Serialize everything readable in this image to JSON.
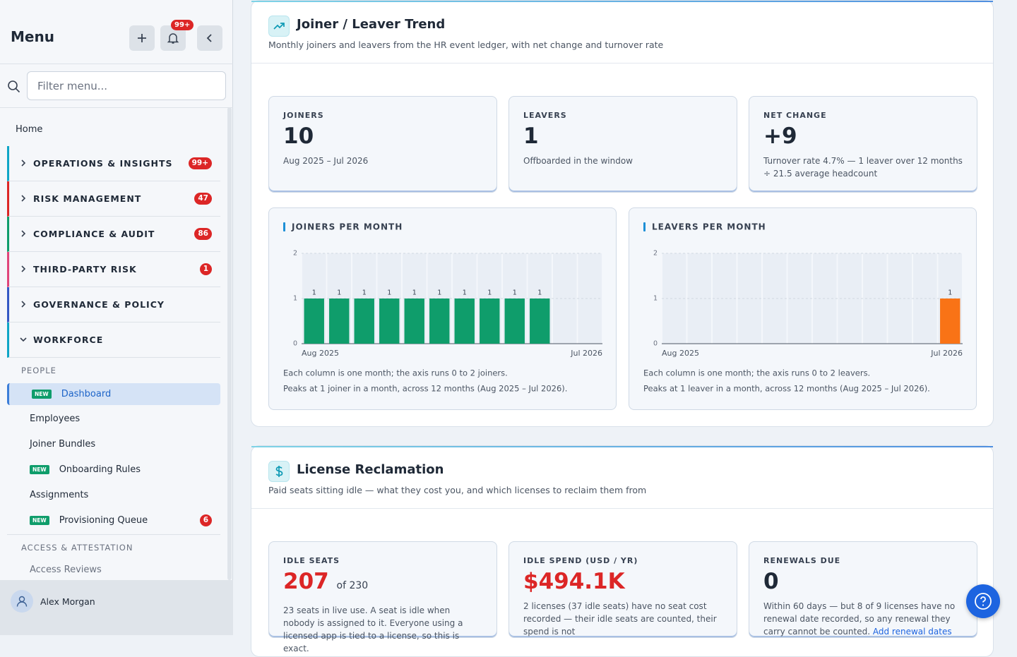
{
  "sidebar": {
    "title": "Menu",
    "notifications": "99+",
    "filter_placeholder": "Filter menu...",
    "home": "Home",
    "groups": [
      {
        "label": "OPERATIONS & INSIGHTS",
        "badge": "99+",
        "color": "#0ea5c6"
      },
      {
        "label": "RISK MANAGEMENT",
        "badge": "47",
        "color": "#dc2626"
      },
      {
        "label": "COMPLIANCE & AUDIT",
        "badge": "86",
        "color": "#0f9d6b"
      },
      {
        "label": "THIRD-PARTY RISK",
        "badge": "1",
        "color": "#e0457b"
      },
      {
        "label": "GOVERNANCE & POLICY",
        "color": "#3358c4"
      },
      {
        "label": "WORKFORCE",
        "color": "#0ea5c6"
      }
    ],
    "sections": [
      {
        "heading": "PEOPLE",
        "items": [
          {
            "label": "Dashboard",
            "tag": "NEW"
          },
          {
            "label": "Employees"
          },
          {
            "label": "Joiner Bundles"
          },
          {
            "label": "Onboarding Rules",
            "tag": "NEW"
          },
          {
            "label": "Assignments"
          },
          {
            "label": "Provisioning Queue",
            "tag": "NEW",
            "badge": "6"
          }
        ]
      },
      {
        "heading": "ACCESS & ATTESTATION",
        "items": [
          {
            "label": "Access Reviews"
          }
        ]
      }
    ],
    "user": "Alex Morgan"
  },
  "panels": [
    {
      "title": "Joiner / Leaver Trend",
      "subtitle": "Monthly joiners and leavers from the HR event ledger, with net change and turnover rate",
      "stats": [
        {
          "label": "JOINERS",
          "value": "10",
          "note": "Aug 2025 – Jul 2026"
        },
        {
          "label": "LEAVERS",
          "value": "1",
          "note": "Offboarded in the window"
        },
        {
          "label": "NET CHANGE",
          "value": "+9",
          "note": "Turnover rate 4.7% — 1 leaver over 12 months ÷ 21.5 average headcount"
        }
      ]
    },
    {
      "title": "License Reclamation",
      "subtitle": "Paid seats sitting idle — what they cost you, and which licenses to reclaim them from",
      "stats": [
        {
          "label": "IDLE SEATS",
          "value": "207",
          "suffix": "of 230",
          "note": "23 seats in live use. A seat is idle when nobody is assigned to it. Everyone using a licensed app is tied to a license, so this is exact."
        },
        {
          "label": "IDLE SPEND (USD / YR)",
          "value": "$494.1K",
          "note": "2 licenses (37 idle seats) have no seat cost recorded — their idle seats are counted, their spend is not"
        },
        {
          "label": "RENEWALS DUE",
          "value": "0",
          "note": "Within 60 days — but 8 of 9 licenses have no renewal date recorded, so any renewal they carry cannot be counted.",
          "link": "Add renewal dates"
        }
      ]
    }
  ],
  "chart_data": [
    {
      "type": "bar",
      "title": "JOINERS PER MONTH",
      "categories": [
        "Aug 2025",
        null,
        null,
        null,
        null,
        null,
        null,
        null,
        null,
        null,
        null,
        "Jul 2026"
      ],
      "values": [
        1,
        1,
        1,
        1,
        1,
        1,
        1,
        1,
        1,
        1,
        0,
        0
      ],
      "color": "#0f9d6b",
      "ylim": [
        0,
        2
      ],
      "yticks": [
        0,
        1,
        2
      ],
      "grid": true,
      "notes": [
        "Each column is one month; the axis runs 0 to 2 joiners.",
        "Peaks at 1 joiner in a month, across 12 months (Aug 2025 – Jul 2026)."
      ]
    },
    {
      "type": "bar",
      "title": "LEAVERS PER MONTH",
      "categories": [
        "Aug 2025",
        null,
        null,
        null,
        null,
        null,
        null,
        null,
        null,
        null,
        null,
        "Jul 2026"
      ],
      "values": [
        0,
        0,
        0,
        0,
        0,
        0,
        0,
        0,
        0,
        0,
        0,
        1
      ],
      "color": "#f97316",
      "ylim": [
        0,
        2
      ],
      "yticks": [
        0,
        1,
        2
      ],
      "grid": true,
      "notes": [
        "Each column is one month; the axis runs 0 to 2 leavers.",
        "Peaks at 1 leaver in a month, across 12 months (Aug 2025 – Jul 2026)."
      ]
    }
  ]
}
